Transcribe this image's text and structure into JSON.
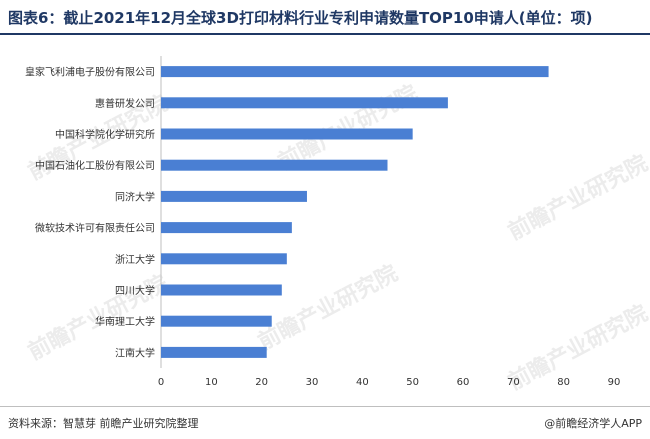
{
  "header": {
    "title": "图表6：截止2021年12月全球3D打印材料行业专利申请数量TOP10申请人(单位：项)"
  },
  "footer": {
    "source": "资料来源：智慧芽 前瞻产业研究院整理",
    "brand": "@前瞻经济学人APP"
  },
  "watermark": {
    "text": "前瞻产业研究院"
  },
  "colors": {
    "bar": "#4a7fd3",
    "axis": "#bfbfbf",
    "title": "#1f3864"
  },
  "chart_data": {
    "type": "bar",
    "orientation": "horizontal",
    "categories": [
      "皇家飞利浦电子股份有限公司",
      "惠普研发公司",
      "中国科学院化学研究所",
      "中国石油化工股份有限公司",
      "同济大学",
      "微软技术许可有限责任公司",
      "浙江大学",
      "四川大学",
      "华南理工大学",
      "江南大学"
    ],
    "values": [
      77,
      57,
      50,
      45,
      29,
      26,
      25,
      24,
      22,
      21
    ],
    "xlim": [
      0,
      90
    ],
    "xticks": [
      0,
      10,
      20,
      30,
      40,
      50,
      60,
      70,
      80,
      90
    ],
    "grid": false,
    "legend": "none"
  }
}
